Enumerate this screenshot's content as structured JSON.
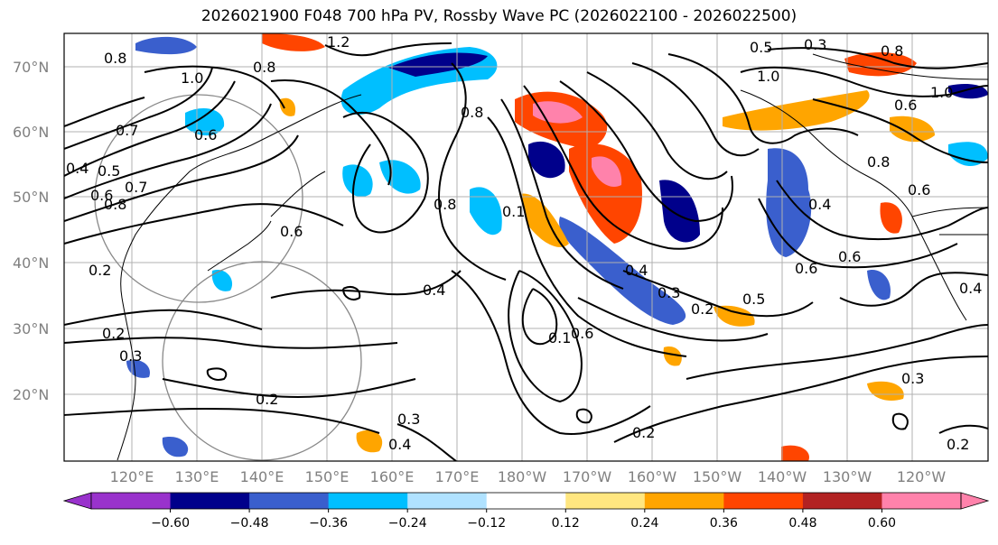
{
  "title": "2026021900 F048 700 hPa PV, Rossby Wave PC (2026022100 - 2026022500)",
  "map": {
    "lat_labels": [
      "70°N",
      "60°N",
      "50°N",
      "40°N",
      "30°N",
      "20°N"
    ],
    "lon_labels": [
      "120°E",
      "130°E",
      "140°E",
      "150°E",
      "160°E",
      "170°E",
      "180°W",
      "170°W",
      "160°W",
      "150°W",
      "140°W",
      "130°W",
      "120°W"
    ],
    "contour_labels": [
      "1.2",
      "0.8",
      "1.0",
      "0.8",
      "0.6",
      "0.7",
      "0.4",
      "0.5",
      "0.6",
      "0.7",
      "0.8",
      "0.6",
      "0.2",
      "0.2",
      "0.3",
      "0.4",
      "0.8",
      "0.1",
      "0.8",
      "0.4",
      "0.3",
      "0.2",
      "0.5",
      "0.6",
      "0.6",
      "1.0",
      "0.5",
      "0.3",
      "0.8",
      "1.0",
      "0.6",
      "0.8",
      "0.6",
      "0.4",
      "0.4",
      "0.3",
      "0.2",
      "0.2",
      "0.3",
      "0.4",
      "0.6",
      "0.1",
      "0.2"
    ]
  },
  "colorbar": {
    "ticks": [
      "−0.60",
      "−0.48",
      "−0.36",
      "−0.24",
      "−0.12",
      "0.12",
      "0.24",
      "0.36",
      "0.48",
      "0.60"
    ],
    "colors": [
      "#9932CC",
      "#00008B",
      "#3A5FCD",
      "#00BFFF",
      "#B0E2FF",
      "#FFFFFF",
      "#FFE680",
      "#FFA500",
      "#FF4500",
      "#B22222",
      "#FF82AB"
    ]
  }
}
